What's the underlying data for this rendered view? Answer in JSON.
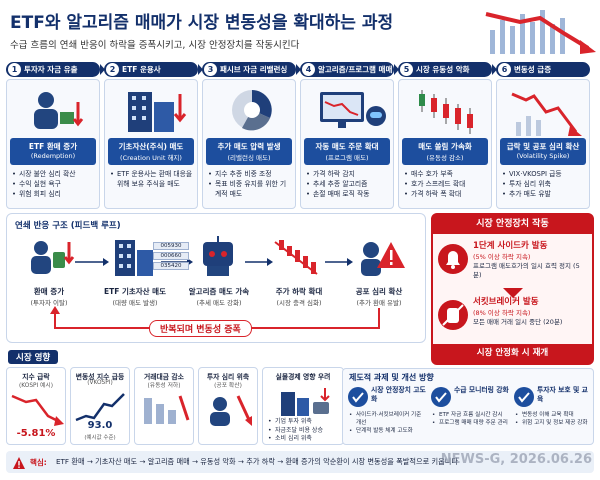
{
  "header": {
    "title": "ETF와 알고리즘 매매가 시장 변동성을 확대하는 과정",
    "subtitle": "수급 흐름의 연쇄 반응이 하락을 증폭시키고, 시장 안정장치를 작동시킨다"
  },
  "steps": [
    {
      "num": "1",
      "label": "투자자 자금 유출",
      "box_title": "ETF 환매 증가",
      "box_sub": "(Redemption)",
      "bullets": [
        "시장 불안 심리 확산",
        "수익 실현 욕구",
        "위험 회피 심리"
      ]
    },
    {
      "num": "2",
      "label": "ETF 운용사",
      "box_title": "기초자산(주식) 매도",
      "box_sub": "(Creation Unit 해지)",
      "bullets": [
        "ETF 운용사는 환매 대응을 위해 보유 주식을 매도"
      ]
    },
    {
      "num": "3",
      "label": "패시브 자금 리밸런싱",
      "box_title": "추가 매도 압력 발생",
      "box_sub": "(리밸런싱 매도)",
      "bullets": [
        "지수 추종 비중 조정",
        "목표 비중 유지를 위한 기계적 매도"
      ]
    },
    {
      "num": "4",
      "label": "알고리즘/프로그램 매매",
      "box_title": "자동 매도 주문 확대",
      "box_sub": "(프로그램 매도)",
      "bullets": [
        "가격 하락 감지",
        "추세 추종 알고리즘",
        "손절 매매 로직 작동"
      ]
    },
    {
      "num": "5",
      "label": "시장 유동성 악화",
      "box_title": "매도 쏠림 가속화",
      "box_sub": "(유동성 감소)",
      "bullets": [
        "매수 호가 부족",
        "호가 스프레드 확대",
        "가격 하락 폭 확대"
      ]
    },
    {
      "num": "6",
      "label": "변동성 급증",
      "box_title": "급락 및 공포 심리 확산",
      "box_sub": "(Volatility Spike)",
      "bullets": [
        "VIX·VKOSPI 급등",
        "투자 심리 위축",
        "추가 매도 유발"
      ]
    }
  ],
  "chain": {
    "title": "연쇄 반응 구조 (피드백 루프)",
    "items": [
      {
        "title": "환매 증가",
        "sub": "(투자자 이탈)"
      },
      {
        "title": "ETF 기초자산 매도",
        "sub": "(대량 매도 발생)"
      },
      {
        "title": "알고리즘 매도 가속",
        "sub": "(추세 매도 강화)"
      },
      {
        "title": "주가 하락 확대",
        "sub": "(시장 충격 심화)"
      },
      {
        "title": "공포 심리 확산",
        "sub": "(추가 환매 유발)"
      }
    ],
    "codes": [
      "005930",
      "000660",
      "035420"
    ],
    "loop_label": "반복되며 변동성 증폭"
  },
  "stabilizer": {
    "title": "시장 안정장치 작동",
    "stages": [
      {
        "title": "1단계 사이드카 발동",
        "sub": "(5% 이상 하락 지속)",
        "desc": "프로그램 매도호가의 일시 효력 정지 (5분)"
      },
      {
        "title": "서킷브레이커 발동",
        "sub": "(8% 이상 하락 지속)",
        "desc": "모든 매매 거래 일시 중단 (20분)"
      }
    ],
    "resume": "시장 안정화 시 재개"
  },
  "impact": {
    "title": "시장 영향",
    "cards": [
      {
        "title": "지수 급락",
        "sub": "(KOSPI 예시)",
        "value": "-5.81%"
      },
      {
        "title": "변동성 지수 급등",
        "sub": "(VKOSPI)",
        "value": "93.0",
        "value_sub": "(예시값 수준)"
      },
      {
        "title": "거래대금 감소",
        "sub": "(유동성 저하)"
      },
      {
        "title": "투자 심리 위축",
        "sub": "(공포 확산)"
      },
      {
        "title": "실물경제 영향 우려",
        "bullets": [
          "기업 투자 위축",
          "자금조달 비용 상승",
          "소비 심리 위축"
        ]
      }
    ]
  },
  "policy": {
    "title": "제도적 과제 및 개선 방향",
    "columns": [
      {
        "title": "시장 안정장치 고도화",
        "bullets": [
          "사이드카·서킷브레이커 기준 개선",
          "단계적 발동 체계 고도화"
        ]
      },
      {
        "title": "수급 모니터링 강화",
        "bullets": [
          "ETF 자금 흐름 실시간 감시",
          "프로그램 매매 대량 주문 관리"
        ]
      },
      {
        "title": "투자자 보호 및 교육",
        "bullets": [
          "변동성 이해 교육 확대",
          "위험 고지 및 정보 제공 강화"
        ]
      }
    ]
  },
  "footer": {
    "label": "핵심:",
    "text": "ETF 환매 → 기초자산 매도 → 알고리즘 매매 → 유동성 악화 → 추가 하락 → 환매 증가의 악순환이 시장 변동성을 폭발적으로 키웁니다"
  },
  "watermark": "NEWS-G, 2026.06.26"
}
